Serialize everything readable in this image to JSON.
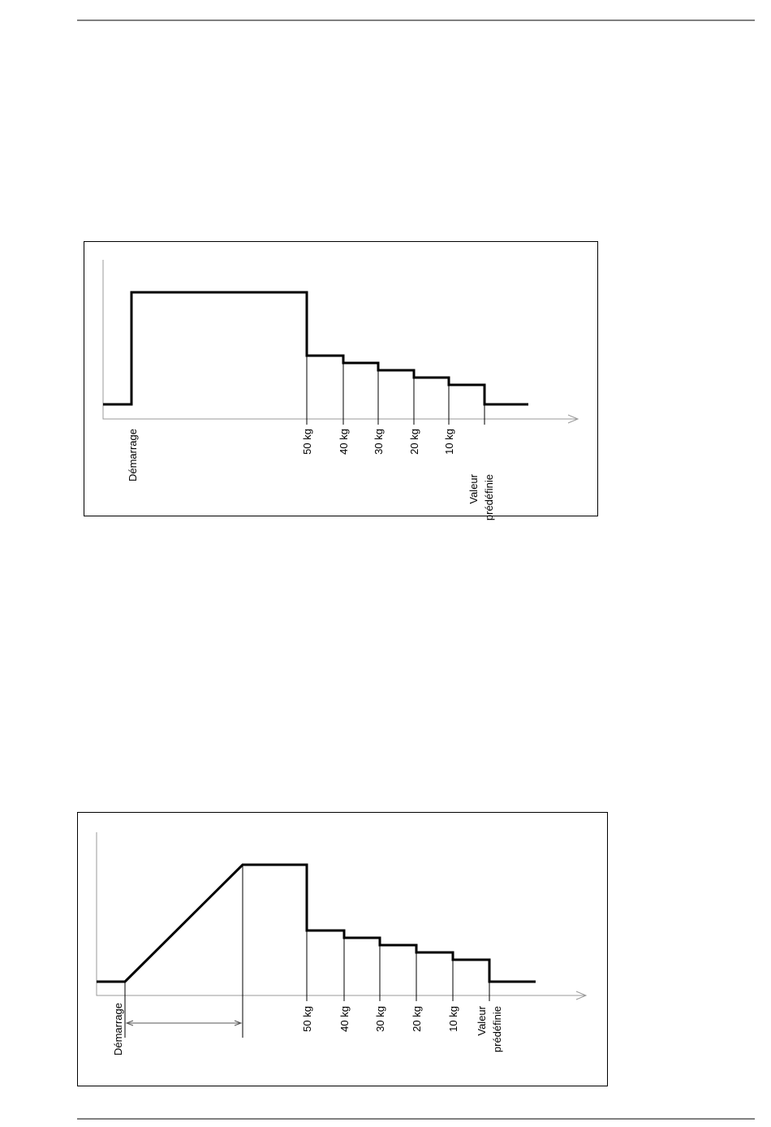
{
  "diagrams": [
    {
      "start_label": "Démarrage",
      "step_labels": [
        "50 kg",
        "40 kg",
        "30 kg",
        "20 kg",
        "10 kg"
      ],
      "end_label": [
        "Valeur",
        "prédéfinie"
      ]
    },
    {
      "start_label": "Démarrage",
      "step_labels": [
        "50 kg",
        "40 kg",
        "30 kg",
        "20 kg",
        "10 kg"
      ],
      "end_label": [
        "Valeur",
        "prédéfinie"
      ]
    }
  ]
}
